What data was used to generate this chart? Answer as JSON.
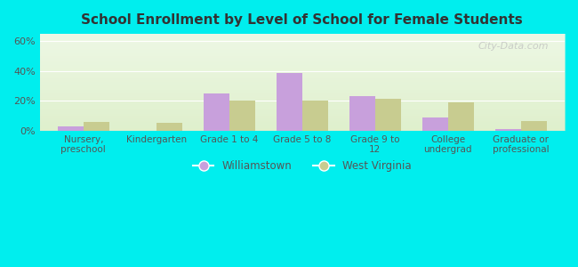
{
  "title": "School Enrollment by Level of School for Female Students",
  "categories": [
    "Nursery,\npreschool",
    "Kindergarten",
    "Grade 1 to 4",
    "Grade 5 to 8",
    "Grade 9 to\n12",
    "College\nundergrad",
    "Graduate or\nprofessional"
  ],
  "williamstown": [
    3,
    0,
    25,
    39,
    23,
    9,
    1
  ],
  "west_virginia": [
    6,
    5.5,
    20,
    20.5,
    21.5,
    19,
    6.5
  ],
  "williamstown_color": "#c8a0dc",
  "west_virginia_color": "#c8cc90",
  "background_color": "#00eeee",
  "ylabel_ticks": [
    "0%",
    "20%",
    "40%",
    "60%"
  ],
  "yticks": [
    0,
    20,
    40,
    60
  ],
  "ylim": [
    0,
    65
  ],
  "bar_width": 0.35,
  "legend_williamstown": "Williamstown",
  "legend_west_virginia": "West Virginia",
  "watermark": "City-Data.com"
}
